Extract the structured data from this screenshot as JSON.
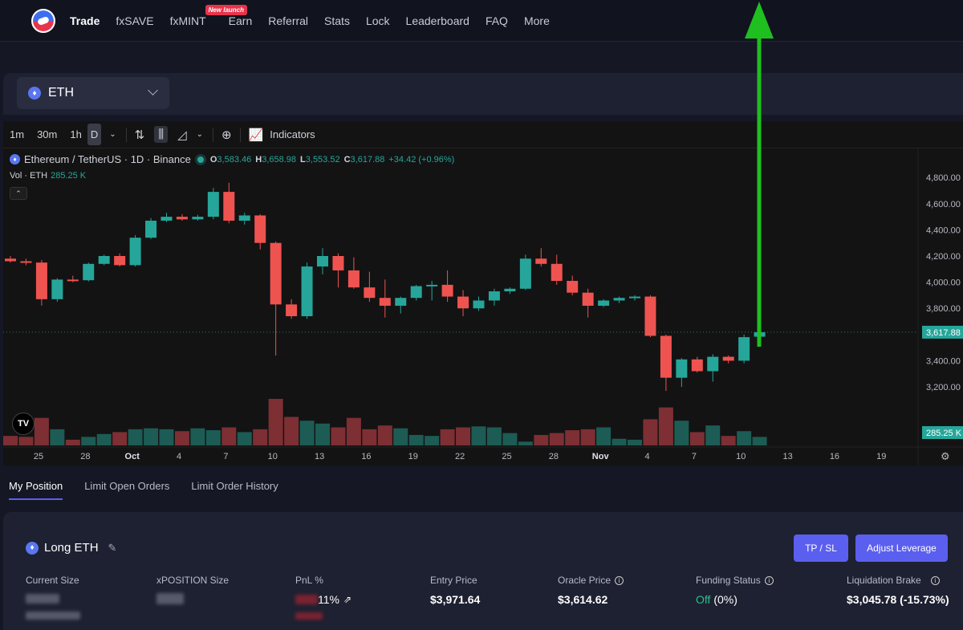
{
  "nav": {
    "items": [
      "Trade",
      "fxSAVE",
      "fxMINT",
      "Earn",
      "Referral",
      "Stats",
      "Lock",
      "Leaderboard",
      "FAQ",
      "More"
    ],
    "new_badge": "New launch"
  },
  "asset": {
    "name": "ETH"
  },
  "toolbar": {
    "intervals": [
      "1m",
      "30m",
      "1h",
      "D"
    ],
    "indicators_label": "Indicators"
  },
  "legend": {
    "symbol": "Ethereum / TetherUS · 1D · Binance",
    "o_label": "O",
    "o": "3,583.46",
    "h_label": "H",
    "h": "3,658.98",
    "l_label": "L",
    "l": "3,553.52",
    "c_label": "C",
    "c": "3,617.88",
    "change": "+34.42 (+0.96%)",
    "vol_label": "Vol · ETH",
    "vol_value": "285.25 K"
  },
  "chart_data": {
    "type": "candlestick",
    "ylim": [
      2900,
      4850
    ],
    "y_ticks": [
      "4,800.00",
      "4,600.00",
      "4,400.00",
      "4,200.00",
      "4,000.00",
      "3,800.00",
      "3,400.00",
      "3,200.00"
    ],
    "y_tick_values": [
      4800,
      4600,
      4400,
      4200,
      4000,
      3800,
      3400,
      3200
    ],
    "price_label": "3,617.88",
    "price_value": 3617.88,
    "volume_label": "285.25 K",
    "x_ticks": [
      "25",
      "28",
      "Oct",
      "4",
      "7",
      "10",
      "13",
      "16",
      "19",
      "22",
      "25",
      "28",
      "Nov",
      "4",
      "7",
      "10",
      "13",
      "16",
      "19"
    ],
    "x_tick_index": [
      3,
      6,
      9,
      12,
      15,
      18,
      21,
      24,
      27,
      30,
      33,
      36,
      39,
      42,
      45,
      48,
      51,
      54,
      57
    ],
    "candles": [
      {
        "o": 4180,
        "h": 4200,
        "l": 4150,
        "c": 4160
      },
      {
        "o": 4160,
        "h": 4180,
        "l": 4130,
        "c": 4150
      },
      {
        "o": 4150,
        "h": 4170,
        "l": 3820,
        "c": 3870
      },
      {
        "o": 3870,
        "h": 4030,
        "l": 3850,
        "c": 4020
      },
      {
        "o": 4020,
        "h": 4050,
        "l": 4000,
        "c": 4015
      },
      {
        "o": 4015,
        "h": 4150,
        "l": 4005,
        "c": 4140
      },
      {
        "o": 4140,
        "h": 4210,
        "l": 4130,
        "c": 4200
      },
      {
        "o": 4200,
        "h": 4220,
        "l": 4120,
        "c": 4130
      },
      {
        "o": 4130,
        "h": 4360,
        "l": 4120,
        "c": 4340
      },
      {
        "o": 4340,
        "h": 4490,
        "l": 4330,
        "c": 4470
      },
      {
        "o": 4470,
        "h": 4530,
        "l": 4460,
        "c": 4500
      },
      {
        "o": 4500,
        "h": 4520,
        "l": 4470,
        "c": 4480
      },
      {
        "o": 4480,
        "h": 4515,
        "l": 4470,
        "c": 4500
      },
      {
        "o": 4500,
        "h": 4720,
        "l": 4480,
        "c": 4690
      },
      {
        "o": 4690,
        "h": 4760,
        "l": 4450,
        "c": 4470
      },
      {
        "o": 4470,
        "h": 4530,
        "l": 4440,
        "c": 4510
      },
      {
        "o": 4510,
        "h": 4520,
        "l": 4250,
        "c": 4300
      },
      {
        "o": 4300,
        "h": 4310,
        "l": 3440,
        "c": 3830
      },
      {
        "o": 3830,
        "h": 3870,
        "l": 3720,
        "c": 3740
      },
      {
        "o": 3740,
        "h": 4150,
        "l": 3720,
        "c": 4120
      },
      {
        "o": 4120,
        "h": 4260,
        "l": 4060,
        "c": 4200
      },
      {
        "o": 4200,
        "h": 4220,
        "l": 3960,
        "c": 4090
      },
      {
        "o": 4090,
        "h": 4190,
        "l": 3950,
        "c": 3960
      },
      {
        "o": 3960,
        "h": 4080,
        "l": 3850,
        "c": 3880
      },
      {
        "o": 3880,
        "h": 4020,
        "l": 3730,
        "c": 3820
      },
      {
        "o": 3820,
        "h": 3890,
        "l": 3760,
        "c": 3880
      },
      {
        "o": 3880,
        "h": 3980,
        "l": 3860,
        "c": 3970
      },
      {
        "o": 3970,
        "h": 4010,
        "l": 3860,
        "c": 3980
      },
      {
        "o": 3980,
        "h": 4090,
        "l": 3850,
        "c": 3890
      },
      {
        "o": 3890,
        "h": 3940,
        "l": 3740,
        "c": 3800
      },
      {
        "o": 3800,
        "h": 3890,
        "l": 3780,
        "c": 3860
      },
      {
        "o": 3860,
        "h": 3950,
        "l": 3820,
        "c": 3930
      },
      {
        "o": 3930,
        "h": 3960,
        "l": 3910,
        "c": 3950
      },
      {
        "o": 3950,
        "h": 4210,
        "l": 3940,
        "c": 4180
      },
      {
        "o": 4180,
        "h": 4260,
        "l": 4120,
        "c": 4140
      },
      {
        "o": 4140,
        "h": 4210,
        "l": 3980,
        "c": 4010
      },
      {
        "o": 4010,
        "h": 4050,
        "l": 3900,
        "c": 3920
      },
      {
        "o": 3920,
        "h": 3950,
        "l": 3730,
        "c": 3820
      },
      {
        "o": 3820,
        "h": 3870,
        "l": 3810,
        "c": 3860
      },
      {
        "o": 3860,
        "h": 3890,
        "l": 3840,
        "c": 3880
      },
      {
        "o": 3880,
        "h": 3900,
        "l": 3860,
        "c": 3890
      },
      {
        "o": 3890,
        "h": 3900,
        "l": 3580,
        "c": 3590
      },
      {
        "o": 3590,
        "h": 3600,
        "l": 3170,
        "c": 3270
      },
      {
        "o": 3270,
        "h": 3420,
        "l": 3200,
        "c": 3410
      },
      {
        "o": 3410,
        "h": 3430,
        "l": 3310,
        "c": 3320
      },
      {
        "o": 3320,
        "h": 3450,
        "l": 3240,
        "c": 3430
      },
      {
        "o": 3430,
        "h": 3440,
        "l": 3380,
        "c": 3400
      },
      {
        "o": 3400,
        "h": 3600,
        "l": 3380,
        "c": 3580
      },
      {
        "o": 3583.46,
        "h": 3658.98,
        "l": 3553.52,
        "c": 3617.88
      }
    ],
    "volumes": [
      20,
      18,
      58,
      34,
      12,
      18,
      24,
      28,
      34,
      36,
      34,
      30,
      36,
      32,
      38,
      28,
      34,
      98,
      60,
      52,
      46,
      38,
      58,
      34,
      42,
      36,
      22,
      20,
      34,
      38,
      40,
      38,
      26,
      8,
      22,
      26,
      32,
      34,
      38,
      14,
      12,
      55,
      80,
      52,
      28,
      42,
      20,
      30,
      18
    ]
  },
  "tabs": [
    "My Position",
    "Limit Open Orders",
    "Limit Order History"
  ],
  "position": {
    "title": "Long ETH",
    "tp_sl_label": "TP / SL",
    "adjust_leverage_label": "Adjust Leverage",
    "columns": {
      "current_size_label": "Current Size",
      "xposition_size_label": "xPOSITION Size",
      "pnl_label": "PnL %",
      "pnl_value": "11%",
      "entry_price_label": "Entry Price",
      "entry_price_value": "$3,971.64",
      "oracle_price_label": "Oracle Price",
      "oracle_price_value": "$3,614.62",
      "funding_status_label": "Funding Status",
      "funding_status_value": "Off",
      "funding_status_pct": "(0%)",
      "liquidation_brake_label": "Liquidation Brake",
      "liquidation_brake_value": "$3,045.78 (-15.73%)"
    }
  },
  "colors": {
    "up": "#26a69a",
    "down": "#ef5350",
    "accent": "#5b5fef",
    "arrow": "#1fbf1f"
  }
}
